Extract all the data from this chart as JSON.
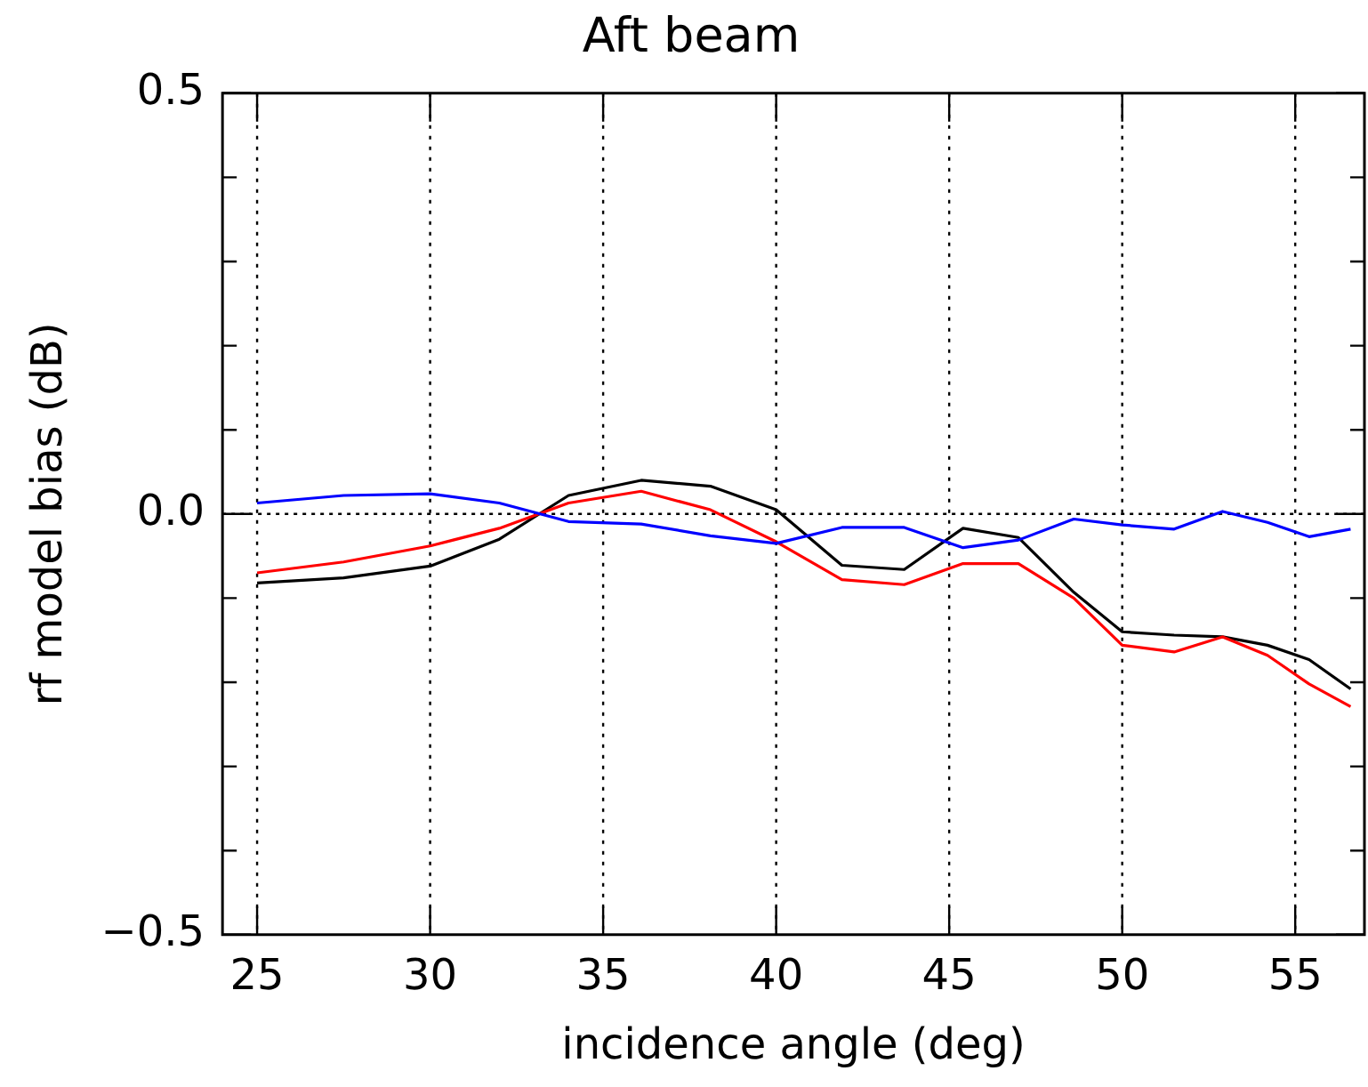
{
  "chart_data": {
    "type": "line",
    "title": "Aft beam",
    "xlabel": "incidence angle (deg)",
    "ylabel": "rf model bias (dB)",
    "x": [
      25,
      27.5,
      30,
      32,
      34,
      36.1,
      38.1,
      40,
      41.9,
      43.7,
      45.4,
      47,
      48.6,
      50,
      51.5,
      52.9,
      54.2,
      55.4,
      56.6
    ],
    "series": [
      {
        "color": "#0000ff",
        "values": [
          0.013,
          0.022,
          0.024,
          0.013,
          -0.009,
          -0.012,
          -0.026,
          -0.035,
          -0.016,
          -0.016,
          -0.04,
          -0.031,
          -0.006,
          -0.013,
          -0.018,
          0.003,
          -0.01,
          -0.027,
          -0.018
        ]
      },
      {
        "color": "#ff0000",
        "values": [
          -0.07,
          -0.057,
          -0.038,
          -0.017,
          0.013,
          0.027,
          0.005,
          -0.033,
          -0.078,
          -0.084,
          -0.059,
          -0.059,
          -0.1,
          -0.156,
          -0.164,
          -0.146,
          -0.168,
          -0.202,
          -0.229
        ]
      },
      {
        "color": "#000000",
        "values": [
          -0.082,
          -0.076,
          -0.062,
          -0.03,
          0.022,
          0.04,
          0.033,
          0.005,
          -0.061,
          -0.066,
          -0.017,
          -0.028,
          -0.093,
          -0.14,
          -0.144,
          -0.146,
          -0.156,
          -0.173,
          -0.208
        ]
      }
    ],
    "xlim": [
      24,
      57
    ],
    "xticks": [
      25,
      30,
      35,
      40,
      45,
      50,
      55
    ],
    "ylim": [
      -0.5,
      0.5
    ],
    "yticks": [
      {
        "value": -0.5,
        "label": "−0.5"
      },
      {
        "value": -0.4,
        "label": null
      },
      {
        "value": -0.3,
        "label": null
      },
      {
        "value": -0.2,
        "label": null
      },
      {
        "value": -0.1,
        "label": null
      },
      {
        "value": 0,
        "label": "0.0"
      },
      {
        "value": 0.1,
        "label": null
      },
      {
        "value": 0.2,
        "label": null
      },
      {
        "value": 0.3,
        "label": null
      },
      {
        "value": 0.4,
        "label": null
      },
      {
        "value": 0.5,
        "label": "0.5"
      }
    ],
    "grid": "x",
    "ref_lines": [
      {
        "axis": "y",
        "value": 0,
        "line_style": "dotted"
      }
    ],
    "legend": false,
    "marker": "none",
    "line_style": "solid"
  }
}
